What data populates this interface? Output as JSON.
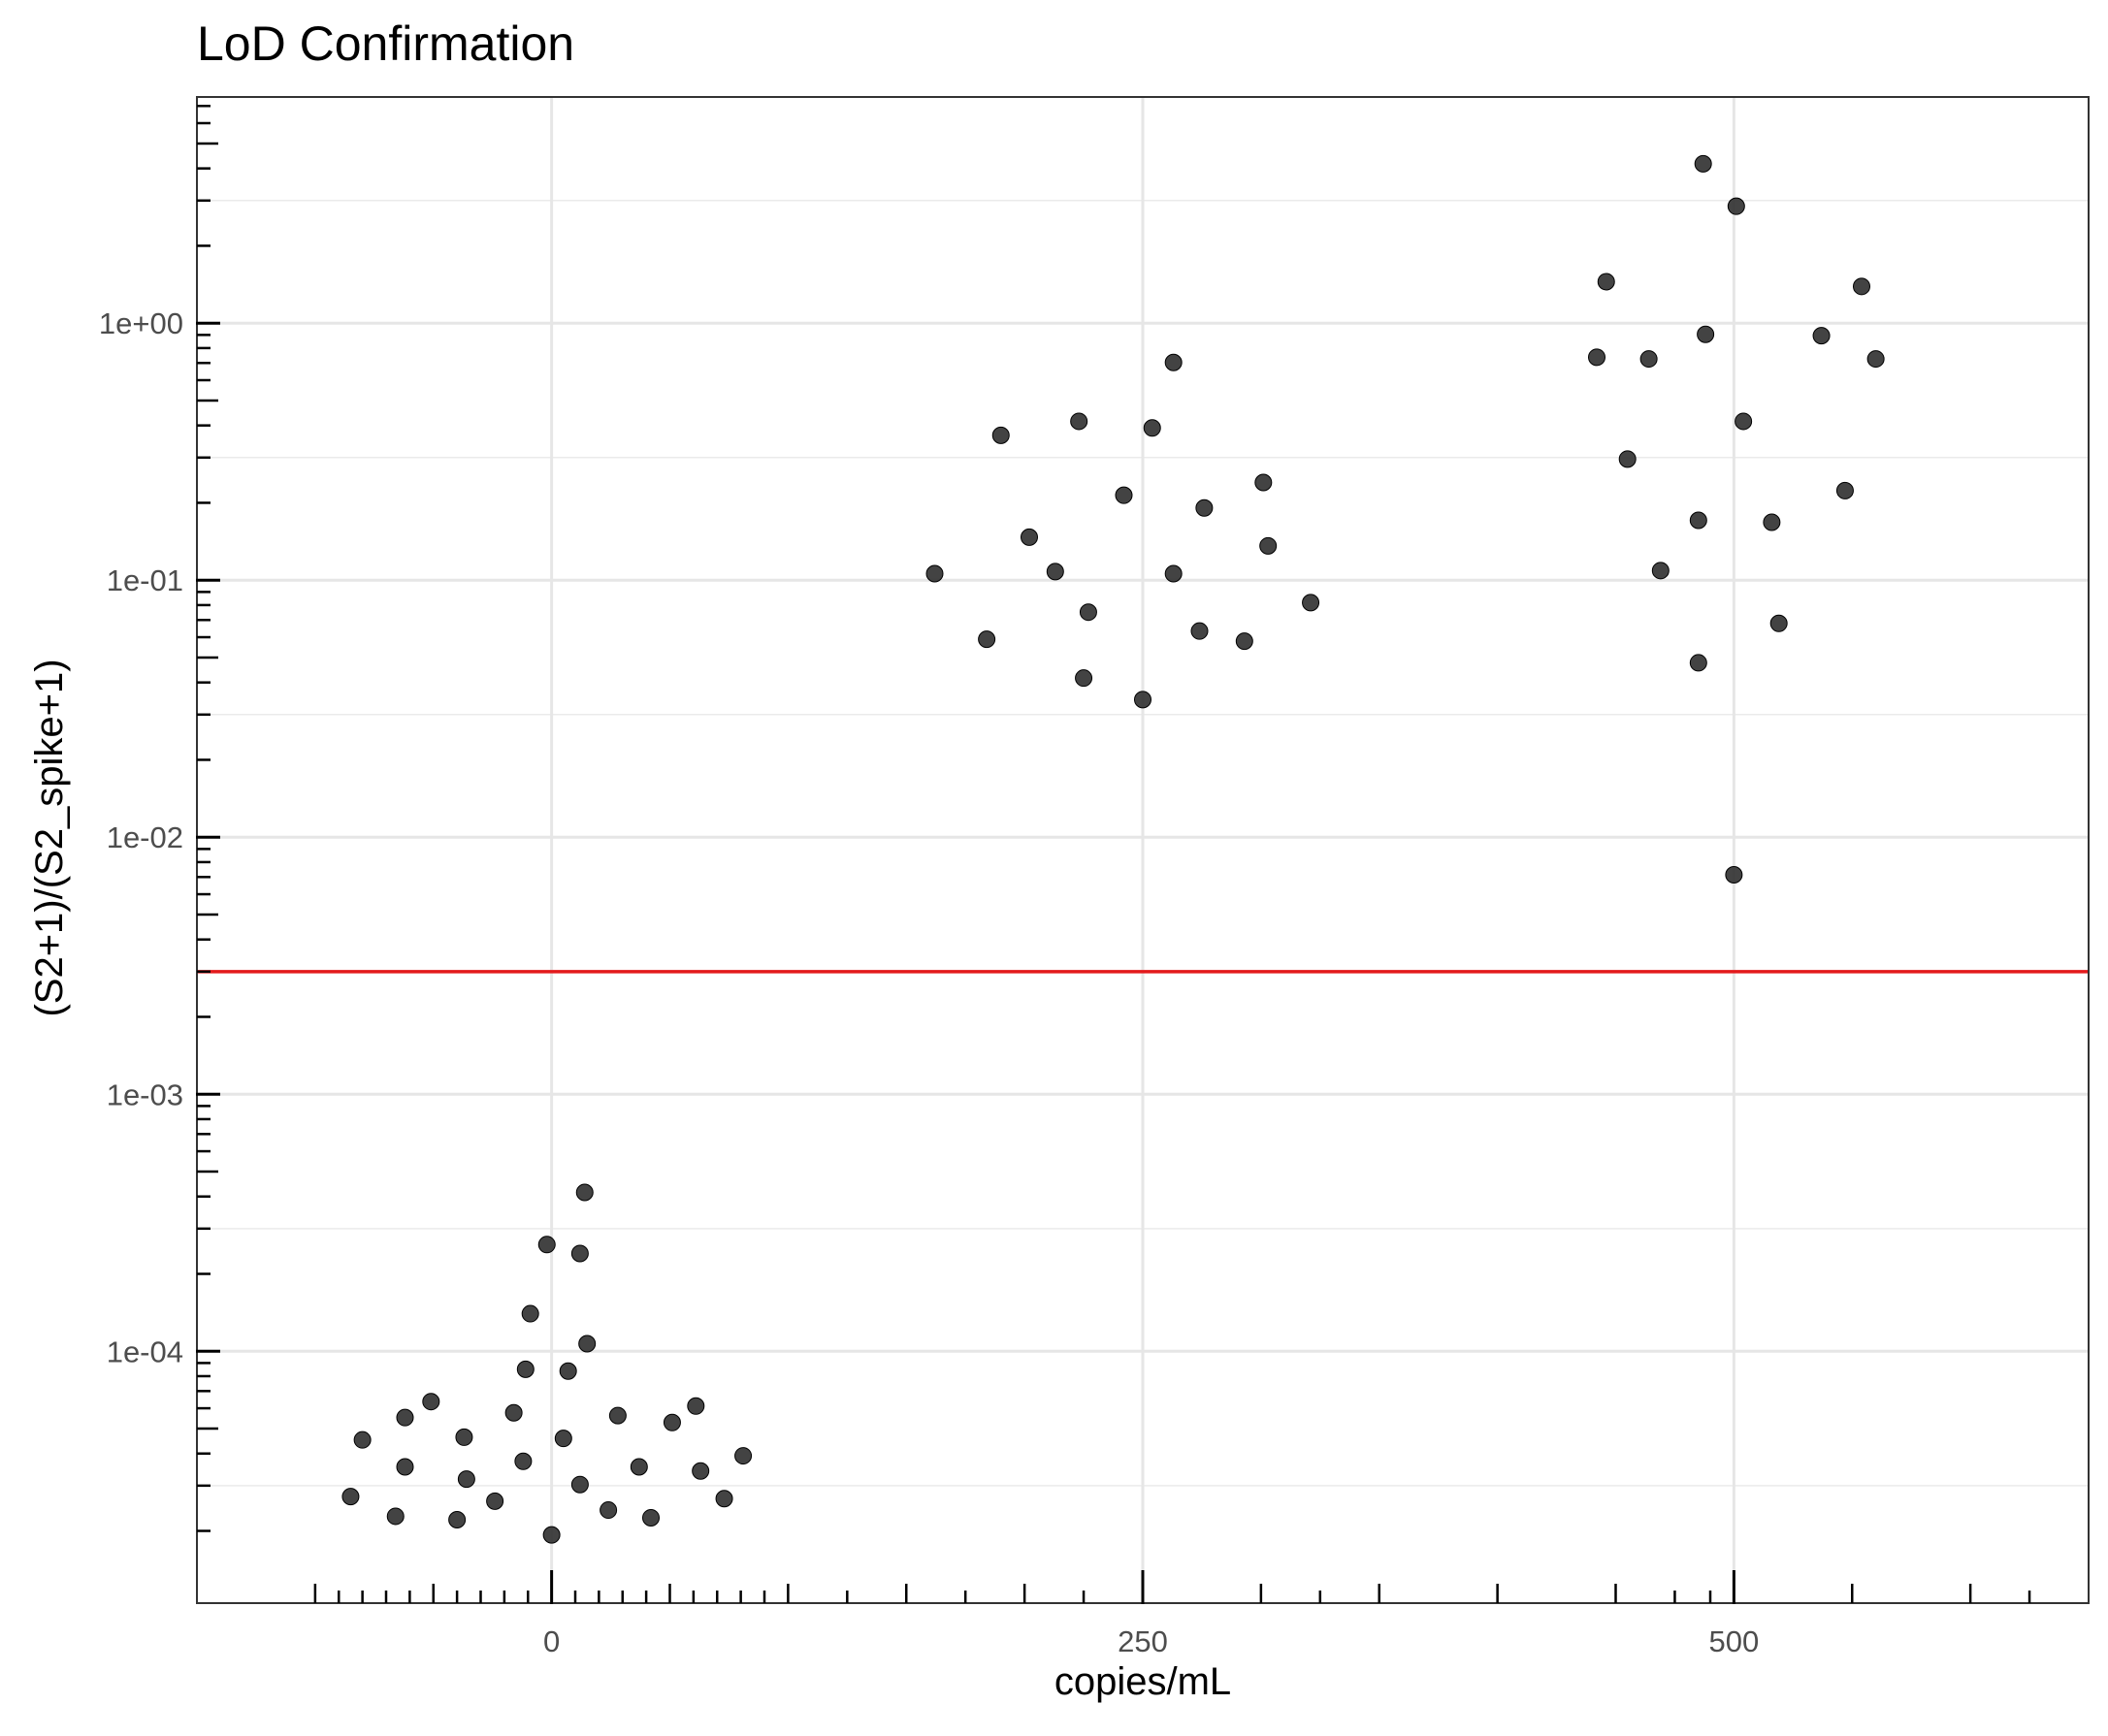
{
  "chart_data": {
    "type": "scatter",
    "title": "LoD Confirmation",
    "xlabel": "copies/mL",
    "ylabel": "(S2+1)/(S2_spike+1)",
    "y_scale": "log10",
    "xlim": [
      -150,
      650
    ],
    "ylim_log10": [
      -4.98,
      0.88
    ],
    "x_ticks": [
      0,
      250,
      500
    ],
    "x_tick_labels": [
      "0",
      "250",
      "500"
    ],
    "y_ticks": [
      1,
      0.1,
      0.01,
      0.001,
      0.0001
    ],
    "y_tick_labels": [
      "1e+00",
      "1e-01",
      "1e-02",
      "1e-03",
      "1e-04"
    ],
    "grid": true,
    "point_color": "#333333",
    "reference_line": {
      "y": 0.003,
      "color": "#e31a1c"
    },
    "series": [
      {
        "points": [
          {
            "x": -85,
            "y": 2.72e-05
          },
          {
            "x": -80,
            "y": 4.52e-05
          },
          {
            "x": -66,
            "y": 2.28e-05
          },
          {
            "x": -62,
            "y": 5.52e-05
          },
          {
            "x": -62,
            "y": 3.55e-05
          },
          {
            "x": -51,
            "y": 6.37e-05
          },
          {
            "x": -40,
            "y": 2.21e-05
          },
          {
            "x": -37,
            "y": 4.63e-05
          },
          {
            "x": -36,
            "y": 3.18e-05
          },
          {
            "x": -24,
            "y": 2.61e-05
          },
          {
            "x": -16,
            "y": 5.76e-05
          },
          {
            "x": -12,
            "y": 3.73e-05
          },
          {
            "x": -11,
            "y": 8.51e-05
          },
          {
            "x": -9,
            "y": 0.00014
          },
          {
            "x": -2,
            "y": 0.00026
          },
          {
            "x": 0,
            "y": 1.93e-05
          },
          {
            "x": 5,
            "y": 4.58e-05
          },
          {
            "x": 7,
            "y": 8.37e-05
          },
          {
            "x": 12,
            "y": 3.03e-05
          },
          {
            "x": 12,
            "y": 0.00024
          },
          {
            "x": 14,
            "y": 0.000415
          },
          {
            "x": 15,
            "y": 0.000107
          },
          {
            "x": 24,
            "y": 2.41e-05
          },
          {
            "x": 28,
            "y": 5.62e-05
          },
          {
            "x": 37,
            "y": 3.55e-05
          },
          {
            "x": 42,
            "y": 2.25e-05
          },
          {
            "x": 51,
            "y": 5.28e-05
          },
          {
            "x": 61,
            "y": 6.12e-05
          },
          {
            "x": 63,
            "y": 3.42e-05
          },
          {
            "x": 73,
            "y": 2.67e-05
          },
          {
            "x": 81,
            "y": 3.92e-05
          },
          {
            "x": 162,
            "y": 0.106
          },
          {
            "x": 184,
            "y": 0.0589
          },
          {
            "x": 190,
            "y": 0.366
          },
          {
            "x": 202,
            "y": 0.147
          },
          {
            "x": 213,
            "y": 0.108
          },
          {
            "x": 223,
            "y": 0.415
          },
          {
            "x": 225,
            "y": 0.0416
          },
          {
            "x": 227,
            "y": 0.0751
          },
          {
            "x": 242,
            "y": 0.214
          },
          {
            "x": 250,
            "y": 0.0343
          },
          {
            "x": 254,
            "y": 0.391
          },
          {
            "x": 263,
            "y": 0.106
          },
          {
            "x": 263,
            "y": 0.703
          },
          {
            "x": 274,
            "y": 0.0634
          },
          {
            "x": 276,
            "y": 0.191
          },
          {
            "x": 293,
            "y": 0.0579
          },
          {
            "x": 301,
            "y": 0.24
          },
          {
            "x": 303,
            "y": 0.136
          },
          {
            "x": 321,
            "y": 0.0818
          },
          {
            "x": 442,
            "y": 0.737
          },
          {
            "x": 446,
            "y": 1.45
          },
          {
            "x": 455,
            "y": 0.296
          },
          {
            "x": 464,
            "y": 0.726
          },
          {
            "x": 469,
            "y": 0.109
          },
          {
            "x": 485,
            "y": 0.171
          },
          {
            "x": 485,
            "y": 0.0477
          },
          {
            "x": 487,
            "y": 4.17
          },
          {
            "x": 488,
            "y": 0.905
          },
          {
            "x": 500,
            "y": 0.00714
          },
          {
            "x": 501,
            "y": 2.85
          },
          {
            "x": 504,
            "y": 0.415
          },
          {
            "x": 516,
            "y": 0.168
          },
          {
            "x": 519,
            "y": 0.0679
          },
          {
            "x": 537,
            "y": 0.894
          },
          {
            "x": 547,
            "y": 0.223
          },
          {
            "x": 554,
            "y": 1.39
          },
          {
            "x": 560,
            "y": 0.726
          }
        ]
      }
    ]
  }
}
